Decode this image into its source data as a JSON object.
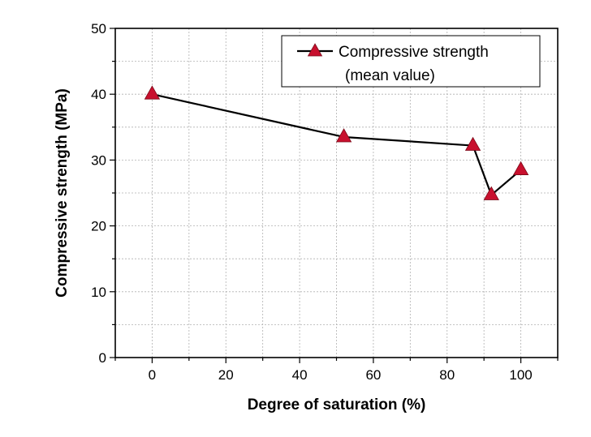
{
  "chart_data": {
    "type": "line",
    "xlabel": "Degree of saturation (%)",
    "ylabel": "Compressive strength (MPa)",
    "xlim": [
      -10,
      110
    ],
    "ylim": [
      0,
      50
    ],
    "xticks": [
      0,
      20,
      40,
      60,
      80,
      100
    ],
    "yticks": [
      0,
      10,
      20,
      30,
      40,
      50
    ],
    "grid": true,
    "legend_position": "top-right",
    "marker": "triangle",
    "colors": {
      "line": "#000000",
      "marker": "#c8102e",
      "grid": "#b0b0b0"
    },
    "series": [
      {
        "name": "Compressive strength (mean value)",
        "legend_lines": [
          "Compressive strength",
          "(mean value)"
        ],
        "x": [
          0,
          52,
          87,
          92,
          100
        ],
        "y": [
          40,
          33.5,
          32.2,
          24.7,
          28.5
        ]
      }
    ]
  }
}
